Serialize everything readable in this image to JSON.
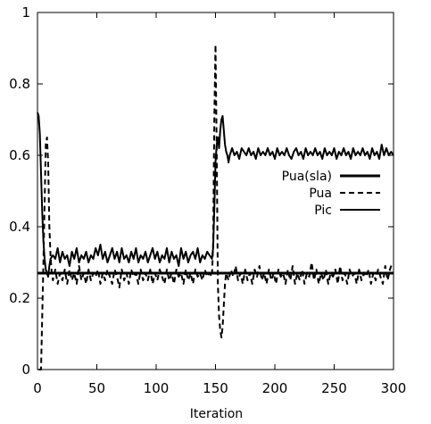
{
  "chart_data": {
    "type": "line",
    "title": "",
    "xlabel": "Iteration",
    "ylabel": "",
    "xlim": [
      0,
      300
    ],
    "ylim": [
      0,
      1
    ],
    "xticks": [
      0,
      50,
      100,
      150,
      200,
      250,
      300
    ],
    "yticks": [
      0,
      0.2,
      0.4,
      0.6,
      0.8,
      1
    ],
    "ytick_labels": [
      "0",
      "0.2",
      "0.4",
      "0.6",
      "0.8",
      "1"
    ],
    "grid": false,
    "legend_position": "right",
    "series": [
      {
        "name": "Pua(sla)",
        "style": "solid-thick",
        "points": [
          [
            0,
            0.27
          ],
          [
            300,
            0.27
          ]
        ]
      },
      {
        "name": "Pua",
        "style": "dashed",
        "points": [
          [
            1,
            0.0
          ],
          [
            3,
            0.0
          ],
          [
            5,
            0.3
          ],
          [
            7,
            0.63
          ],
          [
            8,
            0.65
          ],
          [
            9,
            0.58
          ],
          [
            10,
            0.4
          ],
          [
            11,
            0.32
          ],
          [
            12,
            0.27
          ],
          [
            13,
            0.25
          ],
          [
            15,
            0.28
          ],
          [
            17,
            0.24
          ],
          [
            19,
            0.27
          ],
          [
            21,
            0.25
          ],
          [
            23,
            0.28
          ],
          [
            25,
            0.24
          ],
          [
            27,
            0.28
          ],
          [
            29,
            0.25
          ],
          [
            31,
            0.27
          ],
          [
            33,
            0.24
          ],
          [
            35,
            0.29
          ],
          [
            37,
            0.25
          ],
          [
            39,
            0.27
          ],
          [
            41,
            0.24
          ],
          [
            43,
            0.28
          ],
          [
            45,
            0.25
          ],
          [
            47,
            0.27
          ],
          [
            49,
            0.26
          ],
          [
            51,
            0.28
          ],
          [
            53,
            0.24
          ],
          [
            55,
            0.27
          ],
          [
            57,
            0.25
          ],
          [
            59,
            0.28
          ],
          [
            61,
            0.26
          ],
          [
            63,
            0.24
          ],
          [
            65,
            0.28
          ],
          [
            67,
            0.26
          ],
          [
            69,
            0.23
          ],
          [
            71,
            0.28
          ],
          [
            73,
            0.25
          ],
          [
            75,
            0.27
          ],
          [
            77,
            0.24
          ],
          [
            79,
            0.28
          ],
          [
            81,
            0.26
          ],
          [
            83,
            0.27
          ],
          [
            85,
            0.24
          ],
          [
            87,
            0.28
          ],
          [
            89,
            0.25
          ],
          [
            91,
            0.27
          ],
          [
            93,
            0.25
          ],
          [
            95,
            0.28
          ],
          [
            97,
            0.24
          ],
          [
            99,
            0.27
          ],
          [
            101,
            0.25
          ],
          [
            103,
            0.28
          ],
          [
            105,
            0.26
          ],
          [
            107,
            0.24
          ],
          [
            109,
            0.28
          ],
          [
            111,
            0.25
          ],
          [
            113,
            0.27
          ],
          [
            115,
            0.24
          ],
          [
            117,
            0.28
          ],
          [
            119,
            0.26
          ],
          [
            121,
            0.27
          ],
          [
            123,
            0.24
          ],
          [
            125,
            0.28
          ],
          [
            127,
            0.25
          ],
          [
            129,
            0.27
          ],
          [
            131,
            0.24
          ],
          [
            133,
            0.28
          ],
          [
            135,
            0.26
          ],
          [
            137,
            0.27
          ],
          [
            139,
            0.25
          ],
          [
            141,
            0.28
          ],
          [
            143,
            0.26
          ],
          [
            145,
            0.27
          ],
          [
            147,
            0.26
          ],
          [
            148,
            0.35
          ],
          [
            149,
            0.7
          ],
          [
            150,
            0.91
          ],
          [
            151,
            0.62
          ],
          [
            152,
            0.24
          ],
          [
            153,
            0.15
          ],
          [
            154,
            0.11
          ],
          [
            155,
            0.09
          ],
          [
            156,
            0.12
          ],
          [
            157,
            0.18
          ],
          [
            158,
            0.24
          ],
          [
            159,
            0.27
          ],
          [
            161,
            0.25
          ],
          [
            163,
            0.28
          ],
          [
            165,
            0.26
          ],
          [
            167,
            0.29
          ],
          [
            169,
            0.25
          ],
          [
            171,
            0.27
          ],
          [
            173,
            0.24
          ],
          [
            175,
            0.28
          ],
          [
            177,
            0.25
          ],
          [
            179,
            0.27
          ],
          [
            181,
            0.24
          ],
          [
            183,
            0.28
          ],
          [
            185,
            0.26
          ],
          [
            187,
            0.29
          ],
          [
            189,
            0.25
          ],
          [
            191,
            0.27
          ],
          [
            193,
            0.24
          ],
          [
            195,
            0.28
          ],
          [
            197,
            0.25
          ],
          [
            199,
            0.27
          ],
          [
            201,
            0.24
          ],
          [
            203,
            0.28
          ],
          [
            205,
            0.26
          ],
          [
            207,
            0.27
          ],
          [
            209,
            0.24
          ],
          [
            211,
            0.28
          ],
          [
            213,
            0.25
          ],
          [
            215,
            0.29
          ],
          [
            217,
            0.24
          ],
          [
            219,
            0.27
          ],
          [
            221,
            0.25
          ],
          [
            223,
            0.28
          ],
          [
            225,
            0.24
          ],
          [
            227,
            0.27
          ],
          [
            229,
            0.26
          ],
          [
            231,
            0.3
          ],
          [
            233,
            0.25
          ],
          [
            235,
            0.28
          ],
          [
            237,
            0.24
          ],
          [
            239,
            0.27
          ],
          [
            241,
            0.25
          ],
          [
            243,
            0.28
          ],
          [
            245,
            0.24
          ],
          [
            247,
            0.27
          ],
          [
            249,
            0.26
          ],
          [
            251,
            0.28
          ],
          [
            253,
            0.24
          ],
          [
            255,
            0.29
          ],
          [
            257,
            0.25
          ],
          [
            259,
            0.27
          ],
          [
            261,
            0.24
          ],
          [
            263,
            0.28
          ],
          [
            265,
            0.26
          ],
          [
            267,
            0.27
          ],
          [
            269,
            0.24
          ],
          [
            271,
            0.28
          ],
          [
            273,
            0.25
          ],
          [
            275,
            0.27
          ],
          [
            277,
            0.26
          ],
          [
            279,
            0.28
          ],
          [
            281,
            0.24
          ],
          [
            283,
            0.27
          ],
          [
            285,
            0.25
          ],
          [
            287,
            0.28
          ],
          [
            289,
            0.26
          ],
          [
            291,
            0.24
          ],
          [
            293,
            0.29
          ],
          [
            295,
            0.25
          ],
          [
            297,
            0.28
          ],
          [
            299,
            0.3
          ]
        ]
      },
      {
        "name": "Pic",
        "style": "solid",
        "points": [
          [
            0,
            0.72
          ],
          [
            1,
            0.71
          ],
          [
            2,
            0.66
          ],
          [
            3,
            0.55
          ],
          [
            4,
            0.44
          ],
          [
            5,
            0.36
          ],
          [
            6,
            0.31
          ],
          [
            7,
            0.28
          ],
          [
            8,
            0.27
          ],
          [
            9,
            0.26
          ],
          [
            10,
            0.29
          ],
          [
            11,
            0.31
          ],
          [
            13,
            0.32
          ],
          [
            15,
            0.31
          ],
          [
            17,
            0.34
          ],
          [
            19,
            0.3
          ],
          [
            21,
            0.33
          ],
          [
            23,
            0.31
          ],
          [
            25,
            0.32
          ],
          [
            27,
            0.29
          ],
          [
            29,
            0.33
          ],
          [
            31,
            0.31
          ],
          [
            33,
            0.34
          ],
          [
            35,
            0.3
          ],
          [
            37,
            0.32
          ],
          [
            39,
            0.31
          ],
          [
            41,
            0.33
          ],
          [
            43,
            0.3
          ],
          [
            45,
            0.32
          ],
          [
            47,
            0.31
          ],
          [
            49,
            0.34
          ],
          [
            51,
            0.32
          ],
          [
            53,
            0.35
          ],
          [
            55,
            0.31
          ],
          [
            57,
            0.33
          ],
          [
            59,
            0.3
          ],
          [
            61,
            0.32
          ],
          [
            63,
            0.34
          ],
          [
            65,
            0.31
          ],
          [
            67,
            0.33
          ],
          [
            69,
            0.3
          ],
          [
            71,
            0.34
          ],
          [
            73,
            0.31
          ],
          [
            75,
            0.32
          ],
          [
            77,
            0.3
          ],
          [
            79,
            0.33
          ],
          [
            81,
            0.31
          ],
          [
            83,
            0.34
          ],
          [
            85,
            0.3
          ],
          [
            87,
            0.32
          ],
          [
            89,
            0.31
          ],
          [
            91,
            0.33
          ],
          [
            93,
            0.3
          ],
          [
            95,
            0.32
          ],
          [
            97,
            0.34
          ],
          [
            99,
            0.31
          ],
          [
            101,
            0.33
          ],
          [
            103,
            0.3
          ],
          [
            105,
            0.32
          ],
          [
            107,
            0.31
          ],
          [
            109,
            0.34
          ],
          [
            111,
            0.3
          ],
          [
            113,
            0.33
          ],
          [
            115,
            0.31
          ],
          [
            117,
            0.32
          ],
          [
            119,
            0.29
          ],
          [
            121,
            0.34
          ],
          [
            123,
            0.31
          ],
          [
            125,
            0.33
          ],
          [
            127,
            0.3
          ],
          [
            129,
            0.32
          ],
          [
            131,
            0.33
          ],
          [
            133,
            0.31
          ],
          [
            135,
            0.34
          ],
          [
            137,
            0.3
          ],
          [
            139,
            0.32
          ],
          [
            141,
            0.31
          ],
          [
            143,
            0.33
          ],
          [
            145,
            0.32
          ],
          [
            147,
            0.31
          ],
          [
            148,
            0.34
          ],
          [
            149,
            0.45
          ],
          [
            150,
            0.58
          ],
          [
            151,
            0.63
          ],
          [
            152,
            0.65
          ],
          [
            153,
            0.62
          ],
          [
            154,
            0.67
          ],
          [
            155,
            0.7
          ],
          [
            156,
            0.71
          ],
          [
            157,
            0.67
          ],
          [
            158,
            0.63
          ],
          [
            159,
            0.61
          ],
          [
            160,
            0.6
          ],
          [
            161,
            0.58
          ],
          [
            162,
            0.6
          ],
          [
            164,
            0.62
          ],
          [
            166,
            0.6
          ],
          [
            168,
            0.61
          ],
          [
            170,
            0.59
          ],
          [
            172,
            0.62
          ],
          [
            174,
            0.61
          ],
          [
            176,
            0.6
          ],
          [
            178,
            0.62
          ],
          [
            180,
            0.6
          ],
          [
            182,
            0.61
          ],
          [
            184,
            0.59
          ],
          [
            186,
            0.62
          ],
          [
            188,
            0.6
          ],
          [
            190,
            0.61
          ],
          [
            192,
            0.6
          ],
          [
            194,
            0.62
          ],
          [
            196,
            0.6
          ],
          [
            198,
            0.61
          ],
          [
            200,
            0.59
          ],
          [
            202,
            0.62
          ],
          [
            204,
            0.6
          ],
          [
            206,
            0.61
          ],
          [
            208,
            0.6
          ],
          [
            210,
            0.62
          ],
          [
            212,
            0.6
          ],
          [
            214,
            0.59
          ],
          [
            216,
            0.61
          ],
          [
            218,
            0.62
          ],
          [
            220,
            0.6
          ],
          [
            222,
            0.61
          ],
          [
            224,
            0.59
          ],
          [
            226,
            0.62
          ],
          [
            228,
            0.6
          ],
          [
            230,
            0.61
          ],
          [
            232,
            0.6
          ],
          [
            234,
            0.62
          ],
          [
            236,
            0.6
          ],
          [
            238,
            0.61
          ],
          [
            240,
            0.59
          ],
          [
            242,
            0.62
          ],
          [
            244,
            0.6
          ],
          [
            246,
            0.61
          ],
          [
            248,
            0.6
          ],
          [
            250,
            0.62
          ],
          [
            252,
            0.59
          ],
          [
            254,
            0.61
          ],
          [
            256,
            0.6
          ],
          [
            258,
            0.62
          ],
          [
            260,
            0.6
          ],
          [
            262,
            0.61
          ],
          [
            264,
            0.59
          ],
          [
            266,
            0.62
          ],
          [
            268,
            0.6
          ],
          [
            270,
            0.61
          ],
          [
            272,
            0.6
          ],
          [
            274,
            0.62
          ],
          [
            276,
            0.6
          ],
          [
            278,
            0.61
          ],
          [
            280,
            0.59
          ],
          [
            282,
            0.62
          ],
          [
            284,
            0.6
          ],
          [
            286,
            0.61
          ],
          [
            288,
            0.59
          ],
          [
            290,
            0.63
          ],
          [
            292,
            0.6
          ],
          [
            294,
            0.62
          ],
          [
            296,
            0.6
          ],
          [
            298,
            0.61
          ],
          [
            300,
            0.6
          ]
        ]
      }
    ]
  }
}
